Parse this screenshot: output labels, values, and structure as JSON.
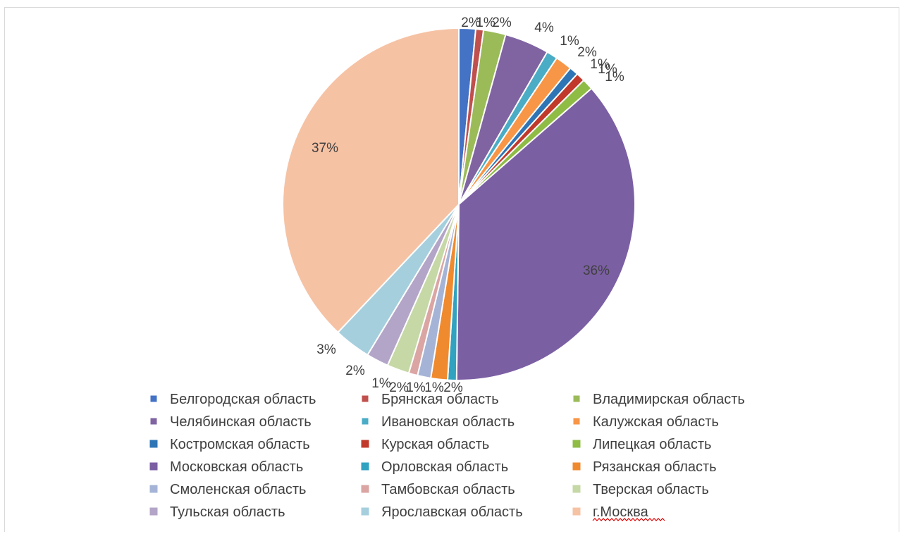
{
  "chart_data": {
    "type": "pie",
    "title": "",
    "start_angle_deg": 0,
    "direction": "clockwise",
    "colors": {
      "Белгородская область": "#4472c4",
      "Брянская область": "#c0504d",
      "Владимирская область": "#9bbb59",
      "Челябинская область": "#8064a2",
      "Ивановская область": "#4bacc6",
      "Калужская область": "#f79646",
      "Костромская область": "#2e75b6",
      "Курская область": "#c0392b",
      "Липецкая область": "#8fbc45",
      "Московская область": "#7b5fa3",
      "Орловская область": "#31a2c0",
      "Рязанская область": "#f08a2e",
      "Смоленская область": "#a5b4d6",
      "Тамбовская область": "#daa5a3",
      "Тверская область": "#c5d8a6",
      "Тульская область": "#b3a5c7",
      "Ярославская область": "#a6cfde",
      "г.Москва": "#f6c2a4"
    },
    "slices": [
      {
        "name": "Белгородская область",
        "value": 1.5,
        "label": "2%"
      },
      {
        "name": "Брянская область",
        "value": 0.7,
        "label": "1%"
      },
      {
        "name": "Владимирская область",
        "value": 2.0,
        "label": "2%"
      },
      {
        "name": "Челябинская область",
        "value": 4.0,
        "label": "4%"
      },
      {
        "name": "Ивановская область",
        "value": 1.0,
        "label": "1%"
      },
      {
        "name": "Калужская область",
        "value": 1.5,
        "label": "2%"
      },
      {
        "name": "Костромская область",
        "value": 0.8,
        "label": "1%"
      },
      {
        "name": "Курская область",
        "value": 0.8,
        "label": "1%"
      },
      {
        "name": "Липецкая область",
        "value": 1.0,
        "label": "1%"
      },
      {
        "name": "Московская область",
        "value": 35.9,
        "label": "36%"
      },
      {
        "name": "Орловская область",
        "value": 0.8,
        "label": "1%"
      },
      {
        "name": "Рязанская область",
        "value": 1.5,
        "label": "2%"
      },
      {
        "name": "Смоленская область",
        "value": 1.2,
        "label": "1%"
      },
      {
        "name": "Тамбовская область",
        "value": 0.8,
        "label": "1%"
      },
      {
        "name": "Тверская область",
        "value": 2.0,
        "label": "2%"
      },
      {
        "name": "Тульская область",
        "value": 2.0,
        "label": "2%"
      },
      {
        "name": "Ярославская область",
        "value": 3.3,
        "label": "3%"
      },
      {
        "name": "г.Москва",
        "value": 37.2,
        "label": "37%"
      }
    ],
    "legend": {
      "position": "bottom",
      "columns": 3,
      "entries": [
        "Белгородская область",
        "Брянская область",
        "Владимирская область",
        "Челябинская область",
        "Ивановская область",
        "Калужская область",
        "Костромская область",
        "Курская область",
        "Липецкая область",
        "Московская область",
        "Орловская область",
        "Рязанская область",
        "Смоленская область",
        "Тамбовская область",
        "Тверская область",
        "Тульская область",
        "Ярославская область",
        "г.Москва"
      ]
    }
  }
}
